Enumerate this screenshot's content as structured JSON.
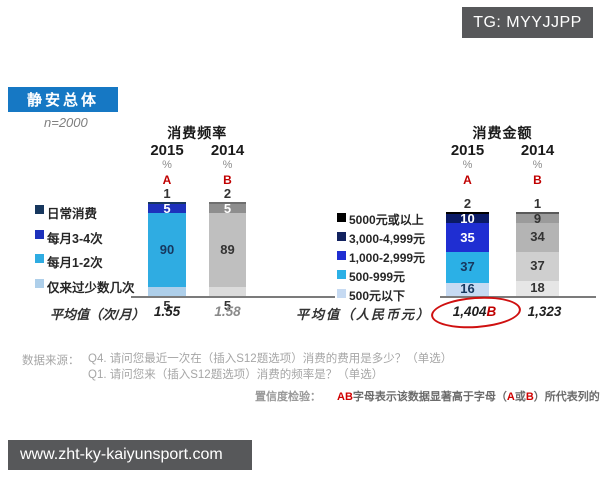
{
  "tg_label": "TG: MYYJJPP",
  "badge": {
    "label": "静安总体"
  },
  "sample_label": "n=2000",
  "charts": [
    {
      "title": "消费频率",
      "avg_label": "平均值（次/月）",
      "legend": [
        {
          "label": "日常消费",
          "color": "#17375e"
        },
        {
          "label": "每月3-4次",
          "color": "#1d31bc"
        },
        {
          "label": "每月1-2次",
          "color": "#2face2"
        },
        {
          "label": "仅来过少数几次",
          "color": "#aecfea"
        }
      ],
      "columns": [
        {
          "year": "2015",
          "pct": "%",
          "letter": "A",
          "top_value": "1",
          "avg": "1.55",
          "avg_suffix": "",
          "circled": false,
          "muted_avg": false,
          "segments": [
            {
              "value": 1,
              "label": "",
              "bg": "#17375e",
              "fg": "#ffffff",
              "pos": "above"
            },
            {
              "value": 5,
              "label": "5",
              "bg": "#1d31bc",
              "fg": "#ffffff",
              "pos": "in"
            },
            {
              "value": 90,
              "label": "90",
              "bg": "#2face2",
              "fg": "#17375e",
              "pos": "in"
            },
            {
              "value": 5,
              "label": "5",
              "bg": "#aecfea",
              "fg": "#333333",
              "pos": "below"
            }
          ]
        },
        {
          "year": "2014",
          "pct": "%",
          "letter": "B",
          "top_value": "2",
          "avg": "1.58",
          "avg_suffix": "",
          "circled": false,
          "muted_avg": true,
          "segments": [
            {
              "value": 2,
              "label": "",
              "bg": "#6f6f6f",
              "fg": "#ffffff",
              "pos": "above"
            },
            {
              "value": 5,
              "label": "5",
              "bg": "#8e8e8e",
              "fg": "#ffffff",
              "pos": "in"
            },
            {
              "value": 89,
              "label": "89",
              "bg": "#bfbfbf",
              "fg": "#333333",
              "pos": "in"
            },
            {
              "value": 5,
              "label": "5",
              "bg": "#dbdbdb",
              "fg": "#333333",
              "pos": "below"
            }
          ]
        }
      ]
    },
    {
      "title": "消费金额",
      "avg_label": "平均值（人民币元）",
      "legend": [
        {
          "label": "5000元或以上",
          "color": "#000000"
        },
        {
          "label": "3,000-4,999元",
          "color": "#12225f"
        },
        {
          "label": "1,000-2,999元",
          "color": "#1f2ed2"
        },
        {
          "label": "500-999元",
          "color": "#2bb0e6"
        },
        {
          "label": "500元以下",
          "color": "#c6daf2"
        }
      ],
      "columns": [
        {
          "year": "2015",
          "pct": "%",
          "letter": "A",
          "top_value": "2",
          "avg": "1,404",
          "avg_suffix": "B",
          "circled": true,
          "muted_avg": false,
          "segments": [
            {
              "value": 2,
              "label": "",
              "bg": "#000000",
              "fg": "#ffffff",
              "pos": "above"
            },
            {
              "value": 10,
              "label": "10",
              "bg": "#0a1a66",
              "fg": "#ffffff",
              "pos": "in"
            },
            {
              "value": 35,
              "label": "35",
              "bg": "#1f2ed2",
              "fg": "#ffffff",
              "pos": "in"
            },
            {
              "value": 37,
              "label": "37",
              "bg": "#2bb0e6",
              "fg": "#17375e",
              "pos": "in"
            },
            {
              "value": 16,
              "label": "16",
              "bg": "#c6daf2",
              "fg": "#17375e",
              "pos": "in"
            }
          ]
        },
        {
          "year": "2014",
          "pct": "%",
          "letter": "B",
          "top_value": "1",
          "avg": "1,323",
          "avg_suffix": "",
          "circled": false,
          "muted_avg": false,
          "segments": [
            {
              "value": 1,
              "label": "",
              "bg": "#5a5a5a",
              "fg": "#ffffff",
              "pos": "above"
            },
            {
              "value": 9,
              "label": "9",
              "bg": "#9b9b9b",
              "fg": "#333333",
              "pos": "in"
            },
            {
              "value": 34,
              "label": "34",
              "bg": "#b4b4b4",
              "fg": "#333333",
              "pos": "in"
            },
            {
              "value": 37,
              "label": "37",
              "bg": "#cfcfcf",
              "fg": "#333333",
              "pos": "in"
            },
            {
              "value": 18,
              "label": "18",
              "bg": "#e6e6e6",
              "fg": "#333333",
              "pos": "in"
            }
          ]
        }
      ]
    }
  ],
  "footer": {
    "source_label": "数据来源：",
    "source_lines": [
      "Q4. 请问您最近一次在（插入S12题选项）消费的费用是多少？（单选）",
      "Q1. 请问您来（插入S12题选项）消费的频率是？（单选）"
    ],
    "confidence_label": "置信度检验：",
    "confidence_parts": [
      "AB",
      "字母表示该数据显著高于字母（",
      "A",
      "或",
      "B",
      "）所代表列的对应数据。"
    ],
    "url": "www.zht-ky-kaiyunsport.com"
  },
  "chart_data": [
    {
      "type": "bar",
      "stacked": true,
      "title": "消费频率",
      "unit": "%",
      "categories": [
        "2015",
        "2014"
      ],
      "column_letters": [
        "A",
        "B"
      ],
      "series": [
        {
          "name": "日常消费",
          "values": [
            1,
            2
          ]
        },
        {
          "name": "每月3-4次",
          "values": [
            5,
            5
          ]
        },
        {
          "name": "每月1-2次",
          "values": [
            90,
            89
          ]
        },
        {
          "name": "仅来过少数几次",
          "values": [
            5,
            5
          ]
        }
      ],
      "averages": {
        "label": "平均值（次/月）",
        "values": [
          "1.55",
          "1.58"
        ]
      },
      "legend_position": "left",
      "sample": "n=2000"
    },
    {
      "type": "bar",
      "stacked": true,
      "title": "消费金额",
      "unit": "%",
      "categories": [
        "2015",
        "2014"
      ],
      "column_letters": [
        "A",
        "B"
      ],
      "series": [
        {
          "name": "5000元或以上",
          "values": [
            2,
            1
          ]
        },
        {
          "name": "3,000-4,999元",
          "values": [
            10,
            9
          ]
        },
        {
          "name": "1,000-2,999元",
          "values": [
            35,
            34
          ]
        },
        {
          "name": "500-999元",
          "values": [
            37,
            37
          ]
        },
        {
          "name": "500元以下",
          "values": [
            16,
            18
          ]
        }
      ],
      "averages": {
        "label": "平均值（人民币元）",
        "values": [
          "1,404B",
          "1,323"
        ],
        "highlight": "2015 value 1,404B circled in red"
      },
      "legend_position": "left",
      "sample": "n=2000"
    }
  ]
}
